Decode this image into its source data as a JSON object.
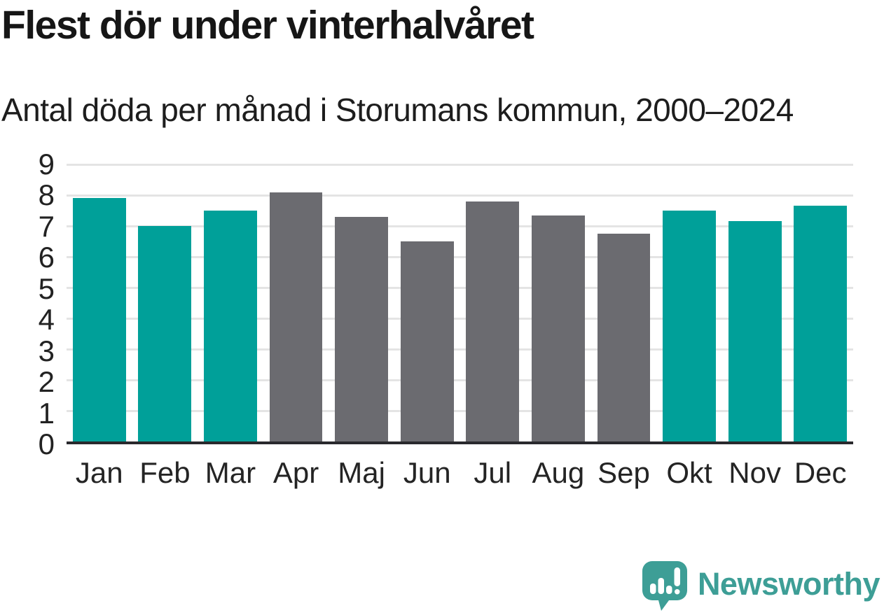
{
  "header": {
    "title": "Flest dör under vinterhalvåret",
    "subtitle": "Antal döda per månad i Storumans kommun, 2000–2024"
  },
  "chart_data": {
    "type": "bar",
    "title": "Flest dör under vinterhalvåret",
    "subtitle": "Antal döda per månad i Storumans kommun, 2000–2024",
    "categories": [
      "Jan",
      "Feb",
      "Mar",
      "Apr",
      "Maj",
      "Jun",
      "Jul",
      "Aug",
      "Sep",
      "Okt",
      "Nov",
      "Dec"
    ],
    "values": [
      7.9,
      7.0,
      7.5,
      8.1,
      7.3,
      6.5,
      7.8,
      7.35,
      6.75,
      7.5,
      7.15,
      7.65
    ],
    "bar_color_keys": [
      "winter",
      "winter",
      "winter",
      "summer",
      "summer",
      "summer",
      "summer",
      "summer",
      "summer",
      "winter",
      "winter",
      "winter"
    ],
    "colors": {
      "winter": "#00a099",
      "summer": "#6b6b70"
    },
    "xlabel": "",
    "ylabel": "",
    "ylim": [
      0,
      9
    ],
    "yticks": [
      0,
      1,
      2,
      3,
      4,
      5,
      6,
      7,
      8,
      9
    ],
    "grid": "horizontal",
    "gridline_color": "#e4e4e4",
    "axis_line_color": "#29292d",
    "legend": "none",
    "bar_width_fraction": 0.81
  },
  "footer": {
    "brand": "Newsworthy",
    "brand_color": "#3d9e96",
    "icon": "newsworthy-speech-bubble-bar-chart-icon"
  }
}
